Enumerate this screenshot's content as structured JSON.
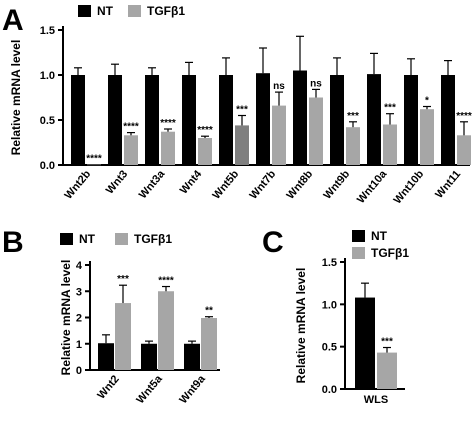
{
  "colors": {
    "nt": "#000000",
    "tgf": "#a6a6a6",
    "tgf_dark": "#7f7f7f",
    "axis": "#000000"
  },
  "chart_data": [
    {
      "panel": "A",
      "type": "bar",
      "ylabel": "Relative mRNA level",
      "ylim": [
        0,
        1.5
      ],
      "yticks": [
        "0.0",
        "0.5",
        "1.0",
        "1.5"
      ],
      "legend": {
        "placement": "top-left",
        "entries": [
          "NT",
          "TGFβ1"
        ]
      },
      "categories": [
        "Wnt2b",
        "Wnt3",
        "Wnt3a",
        "Wnt4",
        "Wnt5b",
        "Wnt7b",
        "Wnt8b",
        "Wnt9b",
        "Wnt10a",
        "Wnt10b",
        "Wnt11"
      ],
      "series": [
        {
          "name": "NT",
          "values": [
            1.0,
            1.0,
            1.0,
            1.0,
            1.0,
            1.02,
            1.05,
            1.0,
            1.01,
            1.0,
            1.0
          ],
          "errors": [
            0.08,
            0.12,
            0.08,
            0.14,
            0.19,
            0.28,
            0.38,
            0.19,
            0.23,
            0.18,
            0.16
          ]
        },
        {
          "name": "TGFβ1",
          "values": [
            0.005,
            0.33,
            0.37,
            0.3,
            0.44,
            0.66,
            0.75,
            0.42,
            0.45,
            0.62,
            0.33
          ],
          "errors": [
            0.0,
            0.03,
            0.03,
            0.02,
            0.11,
            0.15,
            0.09,
            0.06,
            0.12,
            0.03,
            0.15
          ],
          "significance": [
            "****",
            "****",
            "****",
            "****",
            "***",
            "ns",
            "ns",
            "***",
            "***",
            "*",
            "****"
          ]
        }
      ]
    },
    {
      "panel": "B",
      "type": "bar",
      "ylabel": "Relative mRNA level",
      "ylim": [
        0,
        4
      ],
      "yticks": [
        "0",
        "1",
        "2",
        "3",
        "4"
      ],
      "legend": {
        "placement": "top",
        "entries": [
          "NT",
          "TGFβ1"
        ]
      },
      "categories": [
        "Wnt2",
        "Wnt5a",
        "Wnt9a"
      ],
      "series": [
        {
          "name": "NT",
          "values": [
            1.02,
            1.0,
            1.0
          ],
          "errors": [
            0.32,
            0.1,
            0.1
          ]
        },
        {
          "name": "TGFβ1",
          "values": [
            2.55,
            3.0,
            1.98
          ],
          "errors": [
            0.68,
            0.18,
            0.05
          ],
          "significance": [
            "***",
            "****",
            "**"
          ]
        }
      ]
    },
    {
      "panel": "C",
      "type": "bar",
      "ylabel": "Relative mRNA level",
      "ylim": [
        0,
        1.5
      ],
      "yticks": [
        "0.0",
        "0.5",
        "1.0",
        "1.5"
      ],
      "legend": {
        "placement": "top",
        "entries": [
          "NT",
          "TGFβ1"
        ]
      },
      "categories": [
        "WLS"
      ],
      "series": [
        {
          "name": "NT",
          "values": [
            1.08
          ],
          "errors": [
            0.17
          ]
        },
        {
          "name": "TGFβ1",
          "values": [
            0.43
          ],
          "errors": [
            0.06
          ],
          "significance": [
            "***"
          ]
        }
      ]
    }
  ]
}
